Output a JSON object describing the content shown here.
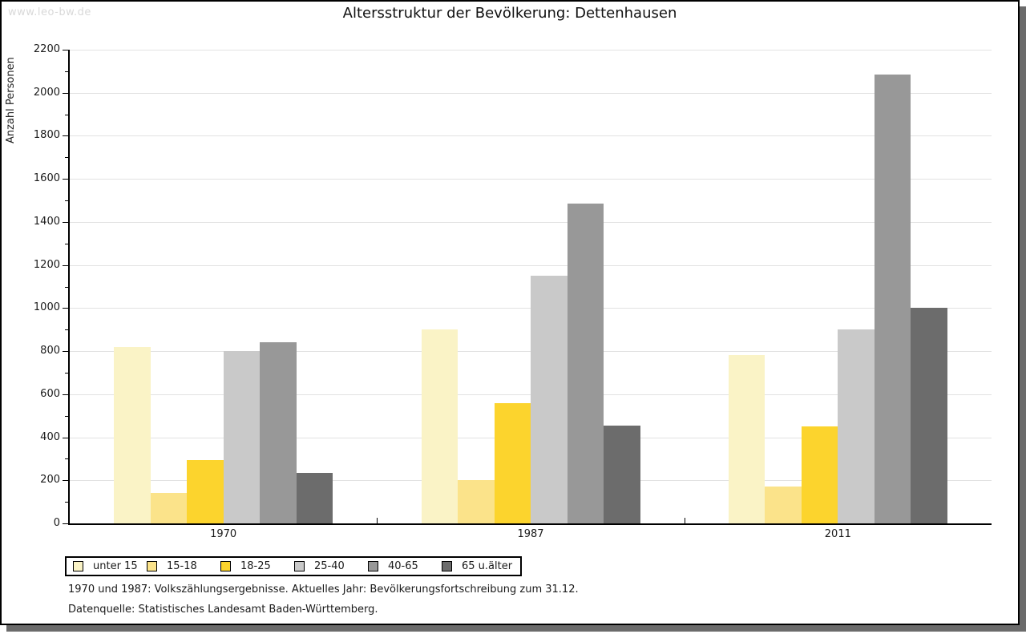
{
  "page": {
    "watermark": "www.leo-bw.de"
  },
  "footer": {
    "line1": "1970 und 1987: Volkszählungsergebnisse. Aktuelles Jahr: Bevölkerungsfortschreibung zum 31.12.",
    "line2": "Datenquelle: Statistisches Landesamt Baden-Württemberg."
  },
  "chart_data": {
    "type": "bar",
    "title": "Altersstruktur der Bevölkerung: Dettenhausen",
    "ylabel": "Anzahl Personen",
    "xlabel": "",
    "categories": [
      "1970",
      "1987",
      "2011"
    ],
    "series": [
      {
        "name": "unter 15",
        "color": "#faf3c6",
        "values": [
          820,
          900,
          780
        ]
      },
      {
        "name": "15-18",
        "color": "#fbe38a",
        "values": [
          140,
          200,
          170
        ]
      },
      {
        "name": "18-25",
        "color": "#fcd42d",
        "values": [
          295,
          560,
          450
        ]
      },
      {
        "name": "25-40",
        "color": "#c9c9c9",
        "values": [
          800,
          1150,
          900
        ]
      },
      {
        "name": "40-65",
        "color": "#989898",
        "values": [
          840,
          1485,
          2085
        ]
      },
      {
        "name": "65 u.älter",
        "color": "#6c6c6c",
        "values": [
          235,
          455,
          1000
        ]
      }
    ],
    "ylim": [
      0,
      2200
    ],
    "ytick_step": 200,
    "yminor_step": 100,
    "grid": "horizontal-major",
    "legend_position": "bottom-left",
    "colors": {
      "gridline": "#e2e2e2",
      "axis": "#000000",
      "shadow": "#6b6b6b",
      "watermark": "#d9d9d9"
    }
  }
}
